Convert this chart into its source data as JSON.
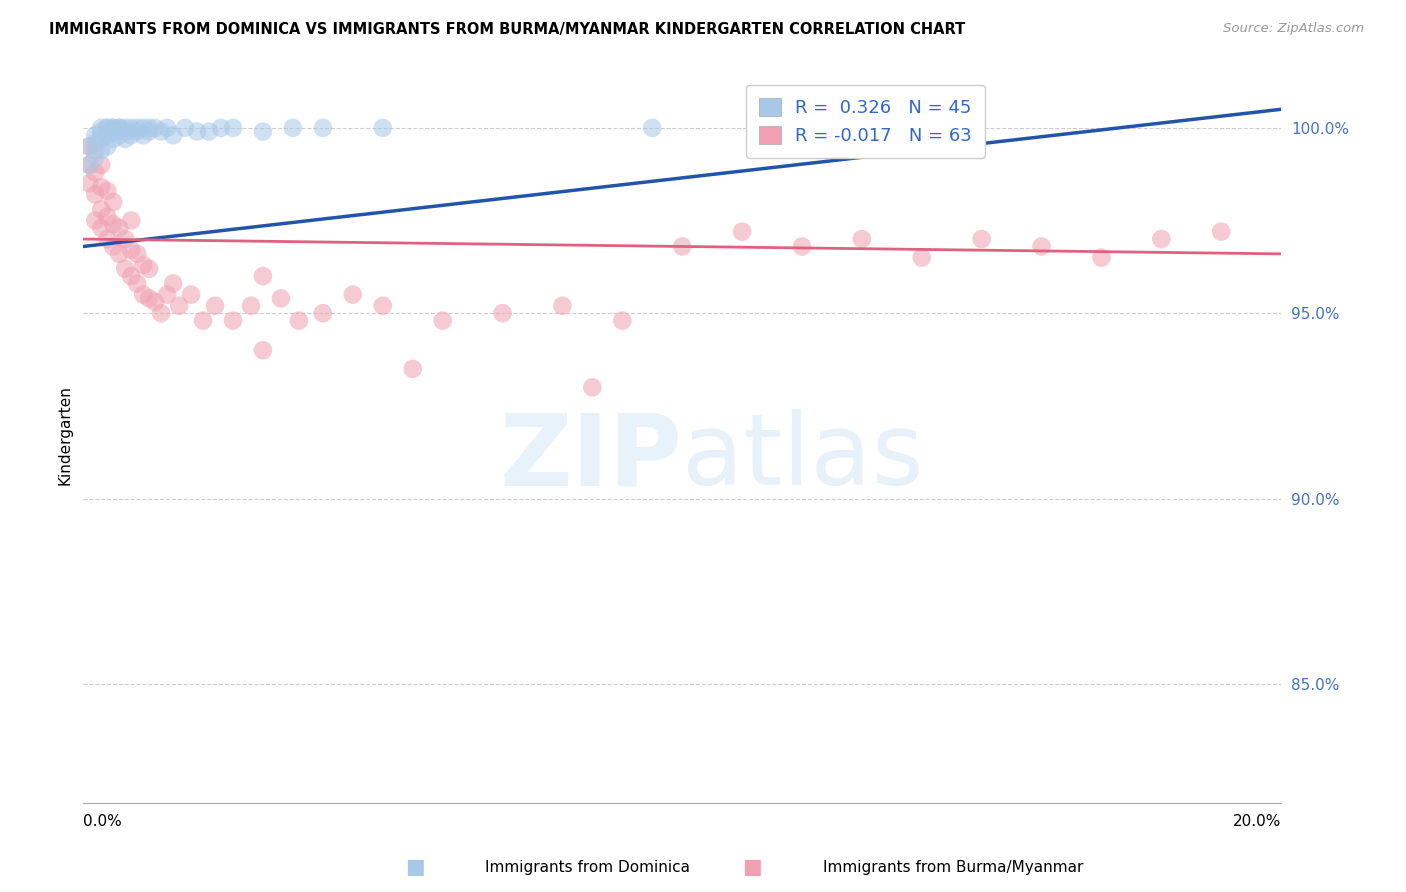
{
  "title": "IMMIGRANTS FROM DOMINICA VS IMMIGRANTS FROM BURMA/MYANMAR KINDERGARTEN CORRELATION CHART",
  "source": "Source: ZipAtlas.com",
  "ylabel": "Kindergarten",
  "xmin": 0.0,
  "xmax": 0.2,
  "ymin": 0.818,
  "ymax": 1.016,
  "yticks": [
    0.85,
    0.9,
    0.95,
    1.0
  ],
  "ytick_labels": [
    "85.0%",
    "90.0%",
    "95.0%",
    "100.0%"
  ],
  "dominica_color": "#a8c8e8",
  "dominica_line_color": "#2255aa",
  "burma_color": "#f0a0b0",
  "burma_line_color": "#e06080",
  "R_dominica": 0.326,
  "N_dominica": 45,
  "R_burma": -0.017,
  "N_burma": 63,
  "legend_label_dominica": "Immigrants from Dominica",
  "legend_label_burma": "Immigrants from Burma/Myanmar",
  "dominica_x": [
    0.001,
    0.001,
    0.002,
    0.002,
    0.002,
    0.003,
    0.003,
    0.003,
    0.003,
    0.004,
    0.004,
    0.004,
    0.004,
    0.005,
    0.005,
    0.005,
    0.005,
    0.006,
    0.006,
    0.006,
    0.007,
    0.007,
    0.007,
    0.008,
    0.008,
    0.009,
    0.009,
    0.01,
    0.01,
    0.011,
    0.011,
    0.012,
    0.013,
    0.014,
    0.015,
    0.017,
    0.019,
    0.021,
    0.023,
    0.025,
    0.03,
    0.035,
    0.04,
    0.05,
    0.095
  ],
  "dominica_y": [
    0.99,
    0.995,
    0.992,
    0.996,
    0.998,
    0.994,
    0.997,
    0.999,
    1.0,
    0.995,
    0.998,
    1.0,
    1.0,
    0.997,
    0.999,
    1.0,
    1.0,
    0.998,
    1.0,
    1.0,
    0.997,
    0.999,
    1.0,
    0.998,
    1.0,
    0.999,
    1.0,
    0.998,
    1.0,
    0.999,
    1.0,
    1.0,
    0.999,
    1.0,
    0.998,
    1.0,
    0.999,
    0.999,
    1.0,
    1.0,
    0.999,
    1.0,
    1.0,
    1.0,
    1.0
  ],
  "burma_x": [
    0.001,
    0.001,
    0.001,
    0.002,
    0.002,
    0.002,
    0.002,
    0.003,
    0.003,
    0.003,
    0.003,
    0.004,
    0.004,
    0.004,
    0.005,
    0.005,
    0.005,
    0.006,
    0.006,
    0.007,
    0.007,
    0.008,
    0.008,
    0.008,
    0.009,
    0.009,
    0.01,
    0.01,
    0.011,
    0.011,
    0.012,
    0.013,
    0.014,
    0.015,
    0.016,
    0.018,
    0.02,
    0.022,
    0.025,
    0.028,
    0.03,
    0.033,
    0.036,
    0.04,
    0.045,
    0.05,
    0.06,
    0.07,
    0.08,
    0.09,
    0.1,
    0.11,
    0.12,
    0.13,
    0.14,
    0.15,
    0.16,
    0.17,
    0.18,
    0.19,
    0.03,
    0.055,
    0.085
  ],
  "burma_y": [
    0.985,
    0.99,
    0.995,
    0.975,
    0.982,
    0.988,
    0.994,
    0.973,
    0.978,
    0.984,
    0.99,
    0.97,
    0.976,
    0.983,
    0.968,
    0.974,
    0.98,
    0.966,
    0.973,
    0.962,
    0.97,
    0.96,
    0.967,
    0.975,
    0.958,
    0.966,
    0.955,
    0.963,
    0.954,
    0.962,
    0.953,
    0.95,
    0.955,
    0.958,
    0.952,
    0.955,
    0.948,
    0.952,
    0.948,
    0.952,
    0.96,
    0.954,
    0.948,
    0.95,
    0.955,
    0.952,
    0.948,
    0.95,
    0.952,
    0.948,
    0.968,
    0.972,
    0.968,
    0.97,
    0.965,
    0.97,
    0.968,
    0.965,
    0.97,
    0.972,
    0.94,
    0.935,
    0.93
  ],
  "trendline_dom_x0": 0.0,
  "trendline_dom_x1": 0.2,
  "trendline_dom_y0": 0.968,
  "trendline_dom_y1": 1.005,
  "trendline_bur_x0": 0.0,
  "trendline_bur_x1": 0.2,
  "trendline_bur_y0": 0.97,
  "trendline_bur_y1": 0.966
}
